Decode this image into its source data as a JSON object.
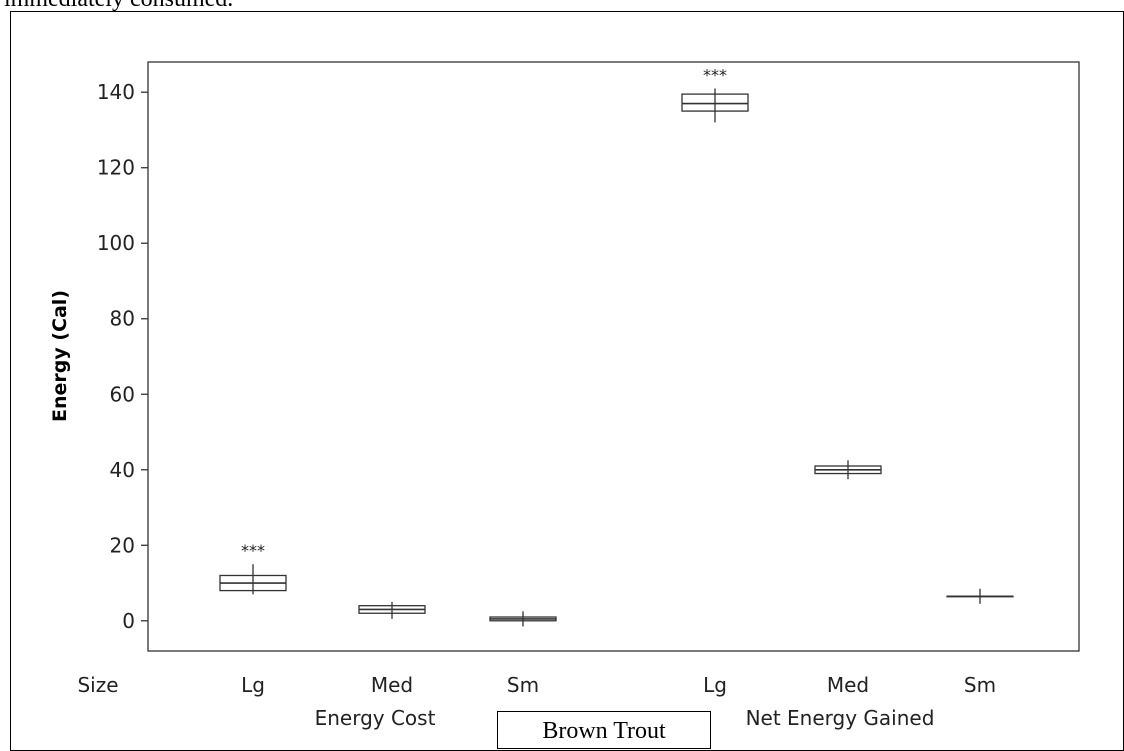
{
  "header_text": "immediately consumed.",
  "caption": "Brown Trout",
  "chart_data": {
    "type": "boxplot",
    "ylabel": "Energy (Cal)",
    "ylim": [
      -8,
      148
    ],
    "yticks": [
      0,
      20,
      40,
      60,
      80,
      100,
      120,
      140
    ],
    "grid": false,
    "size_label": "Size",
    "groups": [
      {
        "name": "Energy Cost",
        "boxes": [
          {
            "category": "Lg",
            "min": 7,
            "q1": 8,
            "median": 10,
            "q3": 12,
            "max": 15,
            "annotation": "***"
          },
          {
            "category": "Med",
            "min": 0.5,
            "q1": 2,
            "median": 3,
            "q3": 4,
            "max": 5,
            "annotation": ""
          },
          {
            "category": "Sm",
            "min": -1.5,
            "q1": 0,
            "median": 0.5,
            "q3": 1,
            "max": 2.5,
            "annotation": ""
          }
        ]
      },
      {
        "name": "Net Energy Gained",
        "boxes": [
          {
            "category": "Lg",
            "min": 132,
            "q1": 135,
            "median": 137,
            "q3": 139.5,
            "max": 141,
            "annotation": "***"
          },
          {
            "category": "Med",
            "min": 37.5,
            "q1": 39,
            "median": 40,
            "q3": 41,
            "max": 42.5,
            "annotation": ""
          },
          {
            "category": "Sm",
            "min": 4.5,
            "q1": 6.5,
            "median": 6.5,
            "q3": 6.5,
            "max": 8.5,
            "annotation": ""
          }
        ]
      }
    ]
  }
}
